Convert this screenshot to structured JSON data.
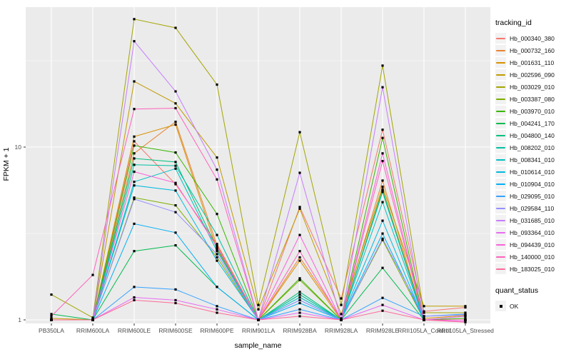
{
  "figure": {
    "background": "#FFFFFF",
    "panel_background": "#EBEBEB",
    "gridline_color": "#FFFFFF",
    "tick_label_color": "#4D4D4D",
    "marker_color": "#000000"
  },
  "chart_data": {
    "type": "line",
    "title": "",
    "xlabel": "sample_name",
    "ylabel": "FPKM + 1",
    "y_scale": "log10",
    "y_ticks": [
      1,
      10
    ],
    "y_minor_breaks": [
      3.162,
      31.62
    ],
    "ylim": [
      0.95,
      65
    ],
    "grid": true,
    "legend_position": "right",
    "categories": [
      "PB350LA",
      "RRIM600LA",
      "RRIM600LE",
      "RRIM600SE",
      "RRIM600PE",
      "RRIM901LA",
      "RRIM928BA",
      "RRIM928LA",
      "RRIM928LE",
      "RRII105LA_Control",
      "RRII105LA_Stressed"
    ],
    "legend": {
      "title": "tracking_id"
    },
    "quant_status": {
      "title": "quant_status",
      "items": [
        {
          "label": "OK",
          "marker": "black-square"
        }
      ]
    },
    "series": [
      {
        "name": "Hb_000340_380",
        "color": "#F8766D",
        "values": [
          1.0,
          1.0,
          10.8,
          6.1,
          2.75,
          1.0,
          4.5,
          1.33,
          12.6,
          1.12,
          1.18
        ]
      },
      {
        "name": "Hb_000732_160",
        "color": "#EA8331",
        "values": [
          1.0,
          1.0,
          9.2,
          14.0,
          2.7,
          1.0,
          2.3,
          1.02,
          6.4,
          1.0,
          1.05
        ]
      },
      {
        "name": "Hb_001631_110",
        "color": "#D89000",
        "values": [
          1.0,
          1.0,
          11.5,
          13.5,
          2.55,
          1.0,
          2.2,
          1.0,
          5.7,
          1.02,
          1.06
        ]
      },
      {
        "name": "Hb_002596_090",
        "color": "#C09B00",
        "values": [
          1.02,
          1.0,
          24.0,
          17.9,
          8.7,
          1.15,
          4.4,
          1.08,
          5.9,
          1.2,
          1.2
        ]
      },
      {
        "name": "Hb_003029_010",
        "color": "#A3A500",
        "values": [
          1.4,
          1.03,
          55.0,
          49.0,
          23.0,
          1.22,
          12.2,
          1.22,
          29.6,
          1.1,
          1.1
        ]
      },
      {
        "name": "Hb_003387_080",
        "color": "#7CAE00",
        "values": [
          1.0,
          1.0,
          5.1,
          4.6,
          2.3,
          1.0,
          1.7,
          1.0,
          2.9,
          1.0,
          1.0
        ]
      },
      {
        "name": "Hb_003970_010",
        "color": "#39B600",
        "values": [
          1.0,
          1.0,
          10.2,
          9.3,
          4.1,
          1.0,
          1.74,
          1.0,
          11.3,
          1.0,
          1.02
        ]
      },
      {
        "name": "Hb_004241_170",
        "color": "#00BB4E",
        "values": [
          1.08,
          1.0,
          2.5,
          2.7,
          1.55,
          1.0,
          1.4,
          1.0,
          2.0,
          1.0,
          1.0
        ]
      },
      {
        "name": "Hb_004800_140",
        "color": "#00BF7D",
        "values": [
          1.0,
          1.0,
          8.6,
          8.2,
          2.6,
          1.0,
          1.45,
          1.0,
          5.6,
          1.0,
          1.0
        ]
      },
      {
        "name": "Hb_008202_010",
        "color": "#00C1A3",
        "values": [
          1.0,
          1.0,
          7.9,
          7.8,
          3.1,
          1.0,
          1.4,
          1.0,
          5.5,
          1.0,
          1.0
        ]
      },
      {
        "name": "Hb_008341_010",
        "color": "#00BFC4",
        "values": [
          1.0,
          1.0,
          6.3,
          7.5,
          2.5,
          1.0,
          1.35,
          1.0,
          4.8,
          1.0,
          1.0
        ]
      },
      {
        "name": "Hb_010614_010",
        "color": "#00BAE0",
        "values": [
          1.0,
          1.0,
          6.0,
          5.6,
          2.2,
          1.0,
          1.3,
          1.0,
          3.75,
          1.0,
          1.0
        ]
      },
      {
        "name": "Hb_010904_010",
        "color": "#00B0F6",
        "values": [
          1.0,
          1.0,
          3.6,
          3.2,
          1.55,
          1.0,
          1.25,
          1.0,
          3.16,
          1.0,
          1.0
        ]
      },
      {
        "name": "Hb_029095_010",
        "color": "#35A2FF",
        "values": [
          1.0,
          1.0,
          1.55,
          1.5,
          1.2,
          1.0,
          1.15,
          1.0,
          1.34,
          1.05,
          1.08
        ]
      },
      {
        "name": "Hb_029584_110",
        "color": "#9590FF",
        "values": [
          1.0,
          1.0,
          5.0,
          4.2,
          2.4,
          1.0,
          1.3,
          1.0,
          2.95,
          1.05,
          1.07
        ]
      },
      {
        "name": "Hb_031685_010",
        "color": "#C77CFF",
        "values": [
          1.0,
          1.0,
          41.0,
          21.0,
          7.4,
          1.0,
          7.1,
          1.0,
          22.2,
          1.0,
          1.05
        ]
      },
      {
        "name": "Hb_093364_010",
        "color": "#E76BF3",
        "values": [
          1.0,
          1.0,
          1.35,
          1.3,
          1.15,
          1.0,
          1.1,
          1.0,
          1.22,
          1.0,
          0.98
        ]
      },
      {
        "name": "Hb_094439_010",
        "color": "#FA62DB",
        "values": [
          1.0,
          1.0,
          7.2,
          6.2,
          2.65,
          1.0,
          3.1,
          1.0,
          9.2,
          1.0,
          1.0
        ]
      },
      {
        "name": "Hb_140000_010",
        "color": "#FF62BC",
        "values": [
          1.05,
          1.82,
          16.6,
          16.8,
          6.5,
          1.0,
          2.5,
          1.0,
          8.3,
          1.0,
          1.0
        ]
      },
      {
        "name": "Hb_183025_010",
        "color": "#FF6A98",
        "values": [
          1.0,
          1.0,
          1.3,
          1.25,
          1.1,
          1.0,
          1.05,
          1.0,
          1.13,
          1.0,
          0.97
        ]
      }
    ]
  }
}
